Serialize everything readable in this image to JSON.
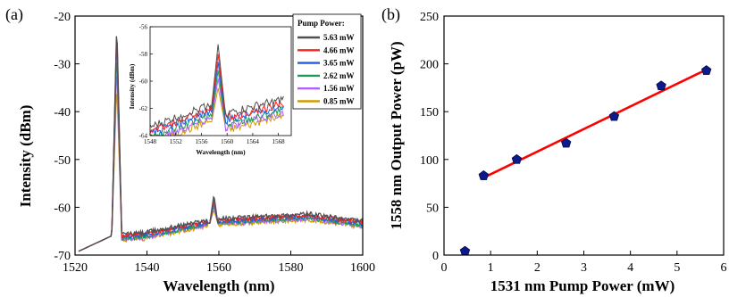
{
  "chart_data": [
    {
      "panel_label": "(a)",
      "type": "line",
      "xlabel": "Wavelength (nm)",
      "ylabel": "Intensity (dBm)",
      "xlim": [
        1520,
        1600
      ],
      "ylim": [
        -70,
        -20
      ],
      "xticks": [
        1520,
        1540,
        1560,
        1580,
        1600
      ],
      "yticks": [
        -70,
        -60,
        -50,
        -40,
        -30,
        -20
      ],
      "legend": {
        "title": "Pump Power:",
        "placement": "top-right",
        "entries": [
          "5.63 mW",
          "4.66 mW",
          "3.65 mW",
          "2.62 mW",
          "1.56 mW",
          "0.85 mW"
        ]
      },
      "series": [
        {
          "name": "5.63 mW",
          "color": "#505050",
          "peak1531": -21,
          "peak1558": -57.3,
          "baseline_shift": 0.6
        },
        {
          "name": "4.66 mW",
          "color": "#ff2020",
          "peak1531": -22,
          "peak1558": -58.0,
          "baseline_shift": 0.3
        },
        {
          "name": "3.65 mW",
          "color": "#1f5fe0",
          "peak1531": -24,
          "peak1558": -58.6,
          "baseline_shift": 0.1
        },
        {
          "name": "2.62 mW",
          "color": "#1a9e55",
          "peak1531": -27,
          "peak1558": -59.2,
          "baseline_shift": -0.2
        },
        {
          "name": "1.56 mW",
          "color": "#b060ff",
          "peak1531": -30,
          "peak1558": -59.8,
          "baseline_shift": -0.4
        },
        {
          "name": "0.85 mW",
          "color": "#d49a00",
          "peak1531": -34,
          "peak1558": -60.5,
          "baseline_shift": -0.6
        }
      ],
      "inset": {
        "xlabel": "Wavelength (nm)",
        "ylabel": "Intensity (dBm)",
        "xlim": [
          1548,
          1570
        ],
        "ylim": [
          -64,
          -56
        ],
        "xticks": [
          1548,
          1552,
          1556,
          1560,
          1564,
          1568
        ],
        "yticks": [
          -64,
          -62,
          -60,
          -58,
          -56
        ]
      }
    },
    {
      "panel_label": "(b)",
      "type": "scatter",
      "xlabel": "1531 nm Pump Power (mW)",
      "ylabel": "1558 nm Output Power (pW)",
      "xlim": [
        0,
        6
      ],
      "ylim": [
        0,
        250
      ],
      "xticks": [
        0,
        1,
        2,
        3,
        4,
        5,
        6
      ],
      "yticks": [
        0,
        50,
        100,
        150,
        200,
        250
      ],
      "points": {
        "x": [
          0.45,
          0.85,
          1.56,
          2.62,
          3.65,
          4.66,
          5.63
        ],
        "y": [
          4,
          83,
          100,
          117,
          145,
          177,
          193
        ],
        "color": "#0c1a8a"
      },
      "fit_line": {
        "x": [
          0.85,
          5.63
        ],
        "y": [
          81,
          194
        ],
        "color": "#ff0000"
      }
    }
  ]
}
